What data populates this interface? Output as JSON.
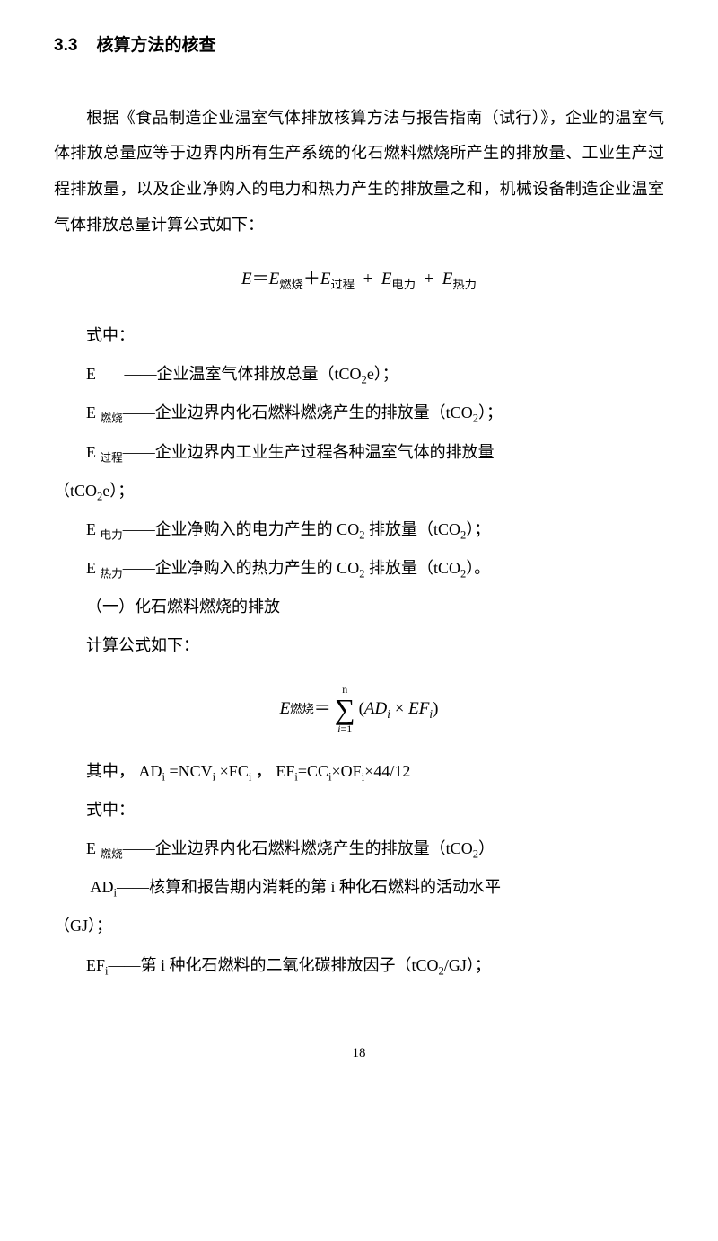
{
  "heading": {
    "number": "3.3",
    "title": "核算方法的核查"
  },
  "paragraph1": "根据《食品制造企业温室气体排放核算方法与报告指南（试行）》，企业的温室气体排放总量应等于边界内所有生产系统的化石燃料燃烧所产生的排放量、工业生产过程排放量，以及企业净购入的电力和热力产生的排放量之和，机械设备制造企业温室气体排放总量计算公式如下：",
  "formula1": {
    "lhs": "E",
    "eq": "＝",
    "terms": [
      "E",
      "E",
      "E",
      "E"
    ],
    "subs": [
      "燃烧",
      "过程",
      "电力",
      "热力"
    ],
    "plus": "＋"
  },
  "shizhong": "式中：",
  "def_E": {
    "sym": "E",
    "dash": "——",
    "text": "企业温室气体排放总量（tCO",
    "sub2": "2",
    "tail": "e）；"
  },
  "def_Eranshaо": {
    "sym": "E",
    "sub": "燃烧",
    "dash": "——",
    "text": "企业边界内化石燃料燃烧产生的排放量（tCO",
    "sub2": "2",
    "tail": "）；"
  },
  "def_Eguocheng": {
    "sym": "E",
    "sub": "过程",
    "dash": "——",
    "text1": "企业边界内工业生产过程各种温室气体的排放量",
    "text2": "（tCO",
    "sub2": "2",
    "tail": "e）；"
  },
  "def_Edianli": {
    "sym": "E",
    "sub": "电力",
    "dash": "——",
    "text": "企业净购入的电力产生的 CO",
    "sub2a": "2",
    "mid": " 排放量（tCO",
    "sub2b": "2",
    "tail": "）；"
  },
  "def_Ereli": {
    "sym": "E",
    "sub": "热力",
    "dash": "——",
    "text": "企业净购入的热力产生的 CO",
    "sub2a": "2",
    "mid": " 排放量（tCO",
    "sub2b": "2",
    "tail": "）。"
  },
  "sub1_title": "（一）化石燃料燃烧的排放",
  "calc_label": "计算公式如下：",
  "formula2": {
    "lhs_E": "E",
    "lhs_sub": "燃烧",
    "eq": "＝",
    "sigma_top": "n",
    "sigma": "∑",
    "sigma_bottom_i": "i",
    "sigma_bottom_eq": "=1",
    "open": "(",
    "AD": "AD",
    "sub_i1": "i",
    "times": " × ",
    "EF": "EF",
    "sub_i2": "i",
    "close": ")"
  },
  "qizhong_line": {
    "prefix": "其中，   AD",
    "sub_i1": "i",
    "part1": " =NCV",
    "sub_i2": "i",
    "part2": " ×FC",
    "sub_i3": "i",
    "part3": "  ，  EF",
    "sub_i4": "i",
    "part4": "=CC",
    "sub_i5": "i",
    "part5": "×OF",
    "sub_i6": "i",
    "part6": "×44/12"
  },
  "shizhong2": "式中：",
  "def2_Eranshaо": {
    "sym": "E",
    "sub": "燃烧",
    "dash": "——",
    "text": "企业边界内化石燃料燃烧产生的排放量（tCO",
    "sub2": "2",
    "tail": "）"
  },
  "def2_AD": {
    "sym": "AD",
    "sub": "i",
    "dash": "——",
    "text1": "核算和报告期内消耗的第 i 种化石燃料的活动水平",
    "text2": "（GJ）；"
  },
  "def2_EF": {
    "sym": "EF",
    "sub": "i",
    "dash": "——",
    "text": "第 i 种化石燃料的二氧化碳排放因子（tCO",
    "sub2": "2",
    "tail": "/GJ）；"
  },
  "page_number": "18"
}
